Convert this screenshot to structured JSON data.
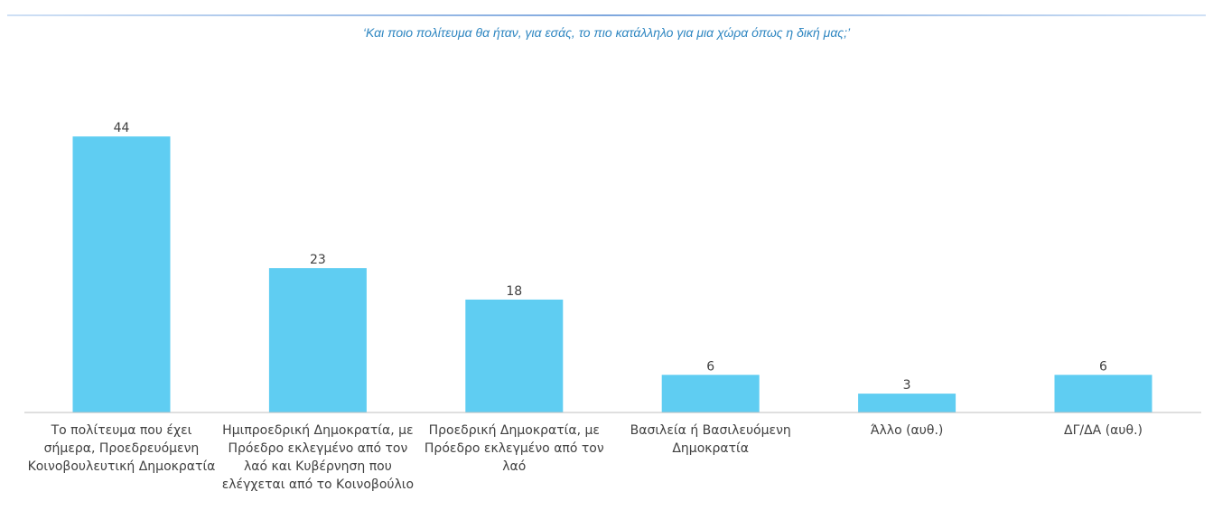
{
  "chart_data": {
    "type": "bar",
    "title": "‘Και ποιο πολίτευμα θα ήταν, για εσάς, το πιο κατάλληλο για μια χώρα όπως η δική μας;’",
    "categories": [
      [
        "Το πολίτευμα που έχει",
        "σήμερα, Προεδρευόμενη",
        "Κοινοβουλευτική Δημοκρατία"
      ],
      [
        "Ημιπροεδρική Δημοκρατία, με",
        "Πρόεδρο εκλεγμένο από τον",
        "λαό και Κυβέρνηση που",
        "ελέγχεται από το Κοινοβούλιο"
      ],
      [
        "Προεδρική Δημοκρατία, με",
        "Πρόεδρο εκλεγμένο από τον",
        "λαό"
      ],
      [
        "Βασιλεία ή Βασιλευόμενη",
        "Δημοκρατία"
      ],
      [
        "Άλλο (αυθ.)"
      ],
      [
        "ΔΓ/ΔΑ (αυθ.)"
      ]
    ],
    "values": [
      44,
      23,
      18,
      6,
      3,
      6
    ],
    "ylim": [
      0,
      50
    ],
    "bar_color": "#5fcdf2",
    "grid": false,
    "legend": "none"
  }
}
